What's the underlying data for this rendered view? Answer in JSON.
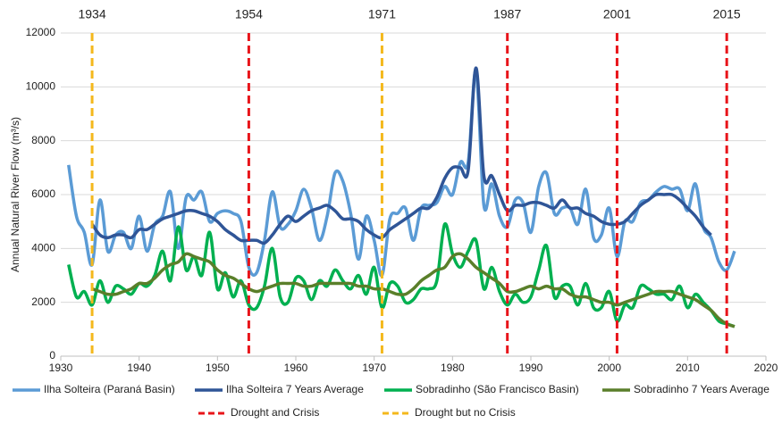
{
  "chart_data": {
    "type": "line",
    "y_label": "Annual Natural River Flow (m³/s)",
    "xlim": [
      1930,
      2020
    ],
    "xticks": [
      1930,
      1940,
      1950,
      1960,
      1970,
      1980,
      1990,
      2000,
      2010,
      2020
    ],
    "ylim": [
      0,
      12000
    ],
    "yticks": [
      0,
      2000,
      4000,
      6000,
      8000,
      10000,
      12000
    ],
    "grid": true,
    "x": [
      1931,
      1932,
      1933,
      1934,
      1935,
      1936,
      1937,
      1938,
      1939,
      1940,
      1941,
      1942,
      1943,
      1944,
      1945,
      1946,
      1947,
      1948,
      1949,
      1950,
      1951,
      1952,
      1953,
      1954,
      1955,
      1956,
      1957,
      1958,
      1959,
      1960,
      1961,
      1962,
      1963,
      1964,
      1965,
      1966,
      1967,
      1968,
      1969,
      1970,
      1971,
      1972,
      1973,
      1974,
      1975,
      1976,
      1977,
      1978,
      1979,
      1980,
      1981,
      1982,
      1983,
      1984,
      1985,
      1986,
      1987,
      1988,
      1989,
      1990,
      1991,
      1992,
      1993,
      1994,
      1995,
      1996,
      1997,
      1998,
      1999,
      2000,
      2001,
      2002,
      2003,
      2004,
      2005,
      2006,
      2007,
      2008,
      2009,
      2010,
      2011,
      2012,
      2013,
      2014,
      2015,
      2016
    ],
    "series": [
      {
        "name": "Ilha Solteira (Paraná Basin)",
        "color": "#5b9bd5",
        "values": [
          7100,
          5200,
          4600,
          3400,
          5800,
          3900,
          4500,
          4600,
          4000,
          5200,
          3900,
          4900,
          5200,
          6100,
          4000,
          5900,
          5800,
          6100,
          5000,
          5300,
          5400,
          5300,
          5000,
          3300,
          3100,
          4300,
          6100,
          4800,
          4900,
          5400,
          6200,
          5500,
          4300,
          5200,
          6800,
          6500,
          5300,
          3600,
          5200,
          4300,
          3000,
          5100,
          5300,
          5500,
          4300,
          5500,
          5600,
          5700,
          6300,
          6000,
          7200,
          7200,
          10600,
          5600,
          6400,
          5200,
          4800,
          5800,
          5700,
          4600,
          6300,
          6800,
          5300,
          5500,
          5500,
          4900,
          6200,
          4400,
          4500,
          5500,
          3700,
          5000,
          5000,
          5700,
          5800,
          6100,
          6300,
          6200,
          6200,
          5400,
          6400,
          4800,
          4400,
          3500,
          3200,
          3900
        ]
      },
      {
        "name": "Ilha Solteira 7 Years Average",
        "color": "#2f5597",
        "values": [
          null,
          null,
          null,
          4900,
          4500,
          4400,
          4500,
          4500,
          4400,
          4700,
          4700,
          4900,
          5100,
          5200,
          5300,
          5400,
          5400,
          5300,
          5200,
          5000,
          4700,
          4500,
          4300,
          4300,
          4300,
          4200,
          4500,
          4900,
          5200,
          5000,
          5200,
          5400,
          5500,
          5600,
          5400,
          5100,
          5100,
          5000,
          4700,
          4500,
          4400,
          4700,
          4900,
          5100,
          5300,
          5500,
          5500,
          5900,
          6600,
          7000,
          7000,
          6900,
          10700,
          6700,
          6700,
          6000,
          5400,
          5600,
          5600,
          5700,
          5700,
          5600,
          5500,
          5800,
          5500,
          5500,
          5300,
          5200,
          5000,
          4900,
          4900,
          5000,
          5300,
          5600,
          5800,
          6000,
          6000,
          6000,
          5800,
          5500,
          5200,
          4800,
          4500,
          null,
          null,
          null
        ]
      },
      {
        "name": "Sobradinho (São Francisco Basin)",
        "color": "#00b050",
        "values": [
          3400,
          2200,
          2400,
          1900,
          2800,
          2000,
          2600,
          2500,
          2300,
          2700,
          2600,
          3000,
          3900,
          2800,
          4800,
          3200,
          3700,
          3000,
          4600,
          2500,
          3100,
          2200,
          2800,
          1900,
          1800,
          2600,
          4000,
          2200,
          2000,
          2900,
          2800,
          2100,
          2800,
          2600,
          3200,
          2800,
          2500,
          3000,
          2300,
          3300,
          1800,
          2700,
          2600,
          2000,
          2100,
          2500,
          2500,
          2800,
          4900,
          3800,
          3300,
          3900,
          4300,
          2500,
          3300,
          2400,
          1900,
          2300,
          2000,
          2200,
          3200,
          4100,
          2200,
          2600,
          2600,
          1900,
          2700,
          1800,
          1800,
          2400,
          1300,
          1900,
          1800,
          2600,
          2500,
          2300,
          2300,
          2100,
          2600,
          1800,
          2300,
          2000,
          1700,
          1300,
          1200,
          1100
        ]
      },
      {
        "name": "Sobradinho 7 Years Average",
        "color": "#5a7f2a",
        "values": [
          null,
          null,
          null,
          2500,
          2400,
          2300,
          2300,
          2400,
          2500,
          2700,
          2700,
          2900,
          3200,
          3400,
          3500,
          3800,
          3700,
          3600,
          3500,
          3200,
          3000,
          2900,
          2700,
          2500,
          2400,
          2500,
          2600,
          2700,
          2700,
          2700,
          2600,
          2600,
          2700,
          2700,
          2700,
          2700,
          2700,
          2600,
          2600,
          2500,
          2500,
          2400,
          2300,
          2300,
          2500,
          2800,
          3000,
          3200,
          3300,
          3700,
          3800,
          3600,
          3300,
          3100,
          2900,
          2700,
          2400,
          2400,
          2500,
          2600,
          2500,
          2600,
          2500,
          2500,
          2300,
          2200,
          2200,
          2100,
          2000,
          2000,
          1900,
          2000,
          2100,
          2200,
          2300,
          2400,
          2400,
          2400,
          2300,
          2200,
          2100,
          1900,
          1700,
          1400,
          1200,
          1100
        ]
      }
    ],
    "event_lines": [
      {
        "name": "Drought and Crisis",
        "color": "#e8141a",
        "years": [
          1954,
          1987,
          2001,
          2015
        ]
      },
      {
        "name": "Drought but no Crisis",
        "color": "#f4b81c",
        "years": [
          1934,
          1971
        ]
      }
    ]
  }
}
